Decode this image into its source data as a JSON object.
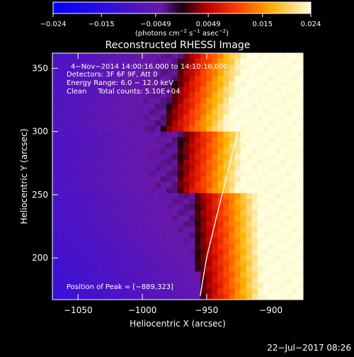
{
  "chart_data": {
    "type": "heatmap",
    "title": "Reconstructed RHESSI Image",
    "xlabel": "Heliocentric X (arcsec)",
    "ylabel": "Heliocentric Y (arcsec)",
    "xlim": [
      -1070,
      -875
    ],
    "ylim": [
      167,
      362
    ],
    "xticks": [
      -1050,
      -1000,
      -950,
      -900
    ],
    "yticks": [
      200,
      250,
      300,
      350
    ],
    "xtick_labels": [
      "−1050",
      "−1000",
      "−950",
      "−900"
    ],
    "ytick_labels": [
      "200",
      "250",
      "300",
      "350"
    ],
    "colorbar": {
      "range": [
        -0.024,
        0.024
      ],
      "ticks": [
        -0.024,
        -0.015,
        -0.0049,
        0.0049,
        0.015,
        0.024
      ],
      "tick_labels": [
        "−0.024",
        "−0.015",
        "−0.0049",
        "0.0049",
        "0.015",
        "0.024"
      ],
      "unit_main": "(photons cm",
      "unit_sup1": "−2",
      "unit_mid": " s",
      "unit_sup2": "−1",
      "unit_mid2": " asec",
      "unit_sup3": "−2",
      "unit_end": ")"
    },
    "annotations": [
      "4−Nov−2014 14:00:16.000 to 14:10:16.000",
      "Detectors: 3F 6F 9F, Att 0",
      "Energy Range: 6.0 − 12.0 keV",
      "Clean     Total counts: 5.10E+04"
    ],
    "peak_label": "Position of Peak = [−889,323]",
    "peak": [
      -889,
      323
    ],
    "limb_points": [
      [
        -955,
        170
      ],
      [
        -950,
        200
      ],
      [
        -943,
        230
      ],
      [
        -935,
        262
      ],
      [
        -927,
        295
      ],
      [
        -918,
        330
      ],
      [
        -910,
        362
      ]
    ]
  },
  "footer": {
    "date": "22−Jul−2017 08:26"
  }
}
